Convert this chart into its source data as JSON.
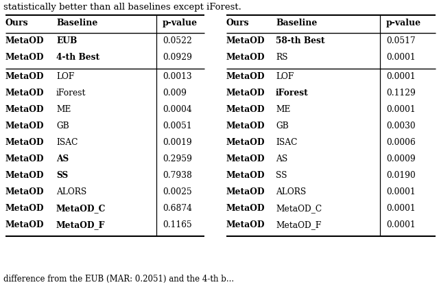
{
  "title_text": "statistically better than all baselines except iForest.",
  "footer_text": "difference from the EUB (MAR: 0.2051) and the 4-th b...",
  "left_table": {
    "headers": [
      "Ours",
      "Baseline",
      "p-value"
    ],
    "section1": [
      [
        "MetaOD",
        "EUB",
        "0.0522"
      ],
      [
        "MetaOD",
        "4-th Best",
        "0.0929"
      ]
    ],
    "section2": [
      [
        "MetaOD",
        "LOF",
        "0.0013"
      ],
      [
        "MetaOD",
        "iForest",
        "0.009"
      ],
      [
        "MetaOD",
        "ME",
        "0.0004"
      ],
      [
        "MetaOD",
        "GB",
        "0.0051"
      ],
      [
        "MetaOD",
        "ISAC",
        "0.0019"
      ],
      [
        "MetaOD",
        "AS",
        "0.2959"
      ],
      [
        "MetaOD",
        "SS",
        "0.7938"
      ],
      [
        "MetaOD",
        "ALORS",
        "0.0025"
      ],
      [
        "MetaOD",
        "MetaOD_C",
        "0.6874"
      ],
      [
        "MetaOD",
        "MetaOD_F",
        "0.1165"
      ]
    ],
    "bold_baselines_s1": [
      "EUB",
      "4-th Best"
    ],
    "bold_baselines_s2": [
      "AS",
      "SS",
      "MetaOD_C",
      "MetaOD_F"
    ]
  },
  "right_table": {
    "headers": [
      "Ours",
      "Baseline",
      "p-value"
    ],
    "section1": [
      [
        "MetaOD",
        "58-th Best",
        "0.0517"
      ],
      [
        "MetaOD",
        "RS",
        "0.0001"
      ]
    ],
    "section2": [
      [
        "MetaOD",
        "LOF",
        "0.0001"
      ],
      [
        "MetaOD",
        "iForest",
        "0.1129"
      ],
      [
        "MetaOD",
        "ME",
        "0.0001"
      ],
      [
        "MetaOD",
        "GB",
        "0.0030"
      ],
      [
        "MetaOD",
        "ISAC",
        "0.0006"
      ],
      [
        "MetaOD",
        "AS",
        "0.0009"
      ],
      [
        "MetaOD",
        "SS",
        "0.0190"
      ],
      [
        "MetaOD",
        "ALORS",
        "0.0001"
      ],
      [
        "MetaOD",
        "MetaOD_C",
        "0.0001"
      ],
      [
        "MetaOD",
        "MetaOD_F",
        "0.0001"
      ]
    ],
    "bold_baselines_s1": [
      "58-th Best"
    ],
    "bold_baselines_s2": [
      "iForest"
    ]
  },
  "bg_color": "#ffffff",
  "text_color": "#000000"
}
